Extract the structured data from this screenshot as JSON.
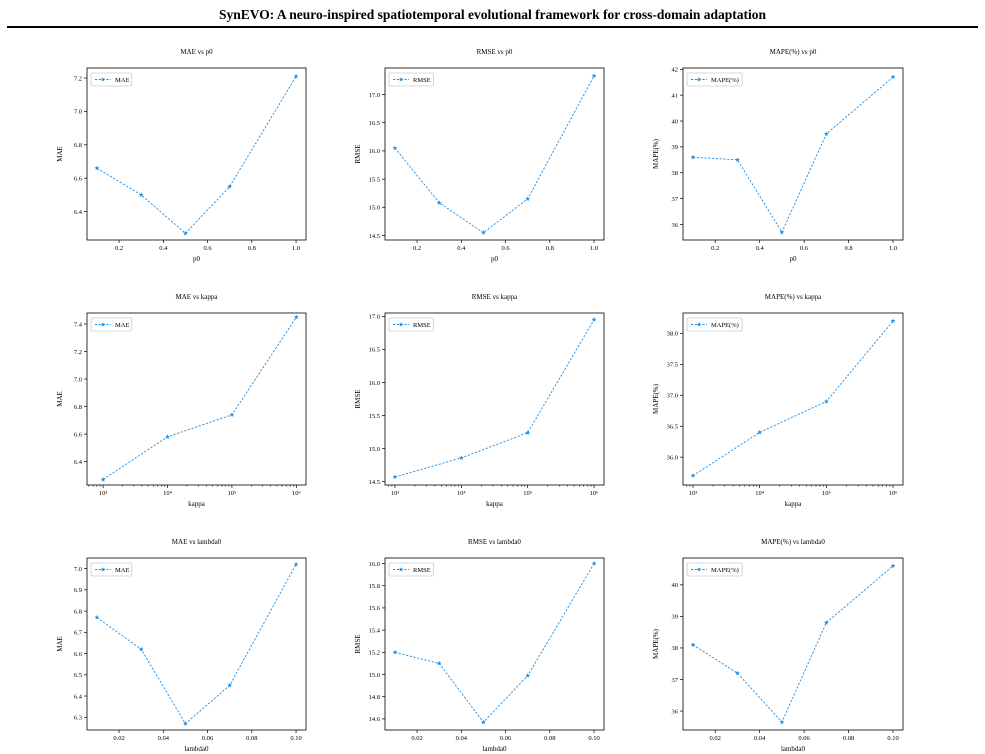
{
  "page": {
    "title": "SynEVO: A neuro-inspired spatiotemporal evolutional framework for cross-domain adaptation"
  },
  "chart_data": [
    {
      "type": "line",
      "title": "MAE vs p0",
      "xlabel": "p0",
      "ylabel": "MAE",
      "xscale": "linear",
      "xlim": [
        0.055,
        1.045
      ],
      "ylim": [
        6.23,
        7.26
      ],
      "xticks": [
        0.2,
        0.4,
        0.6,
        0.8,
        1.0
      ],
      "xtick_labels": [
        "0.2",
        "0.4",
        "0.6",
        "0.8",
        "1.0"
      ],
      "yticks": [
        6.4,
        6.6,
        6.8,
        7.0,
        7.2
      ],
      "ytick_labels": [
        "6.4",
        "6.6",
        "6.8",
        "7.0",
        "7.2"
      ],
      "legend_position": "top-left",
      "grid": false,
      "series": [
        {
          "name": "MAE",
          "color": "#1f8fe5",
          "x": [
            0.1,
            0.3,
            0.5,
            0.7,
            1.0
          ],
          "y": [
            6.66,
            6.5,
            6.27,
            6.55,
            7.21
          ]
        }
      ]
    },
    {
      "type": "line",
      "title": "RMSE vs p0",
      "xlabel": "p0",
      "ylabel": "RMSE",
      "xscale": "linear",
      "xlim": [
        0.055,
        1.045
      ],
      "ylim": [
        14.42,
        17.47
      ],
      "xticks": [
        0.2,
        0.4,
        0.6,
        0.8,
        1.0
      ],
      "xtick_labels": [
        "0.2",
        "0.4",
        "0.6",
        "0.8",
        "1.0"
      ],
      "yticks": [
        14.5,
        15.0,
        15.5,
        16.0,
        16.5,
        17.0
      ],
      "ytick_labels": [
        "14.5",
        "15.0",
        "15.5",
        "16.0",
        "16.5",
        "17.0"
      ],
      "legend_position": "top-left",
      "grid": false,
      "series": [
        {
          "name": "RMSE",
          "color": "#1f8fe5",
          "x": [
            0.1,
            0.3,
            0.5,
            0.7,
            1.0
          ],
          "y": [
            16.05,
            15.08,
            14.55,
            15.15,
            17.33
          ]
        }
      ]
    },
    {
      "type": "line",
      "title": "MAPE(%) vs p0",
      "xlabel": "p0",
      "ylabel": "MAPE(%)",
      "xscale": "linear",
      "xlim": [
        0.055,
        1.045
      ],
      "ylim": [
        35.4,
        42.05
      ],
      "xticks": [
        0.2,
        0.4,
        0.6,
        0.8,
        1.0
      ],
      "xtick_labels": [
        "0.2",
        "0.4",
        "0.6",
        "0.8",
        "1.0"
      ],
      "yticks": [
        36,
        37,
        38,
        39,
        40,
        41,
        42
      ],
      "ytick_labels": [
        "36",
        "37",
        "38",
        "39",
        "40",
        "41",
        "42"
      ],
      "legend_position": "top-left",
      "grid": false,
      "series": [
        {
          "name": "MAPE(%)",
          "color": "#1f8fe5",
          "x": [
            0.1,
            0.3,
            0.5,
            0.7,
            1.0
          ],
          "y": [
            38.6,
            38.5,
            35.7,
            39.5,
            41.7
          ]
        }
      ]
    },
    {
      "type": "line",
      "title": "MAE vs kappa",
      "xlabel": "kappa",
      "ylabel": "MAE",
      "xscale": "log",
      "xlim": [
        2.75,
        6.15
      ],
      "ylim": [
        6.23,
        7.48
      ],
      "xticks": [
        3,
        4,
        5,
        6
      ],
      "xtick_labels": [
        "10³",
        "10⁴",
        "10⁵",
        "10⁶"
      ],
      "yticks": [
        6.4,
        6.6,
        6.8,
        7.0,
        7.2,
        7.4
      ],
      "ytick_labels": [
        "6.4",
        "6.6",
        "6.8",
        "7.0",
        "7.2",
        "7.4"
      ],
      "legend_position": "top-left",
      "grid": false,
      "series": [
        {
          "name": "MAE",
          "color": "#1f8fe5",
          "x": [
            1000,
            10000,
            100000,
            1000000
          ],
          "y": [
            6.27,
            6.58,
            6.74,
            7.45
          ]
        }
      ]
    },
    {
      "type": "line",
      "title": "RMSE vs kappa",
      "xlabel": "kappa",
      "ylabel": "RMSE",
      "xscale": "log",
      "xlim": [
        2.85,
        6.15
      ],
      "ylim": [
        14.45,
        17.05
      ],
      "xticks": [
        3,
        4,
        5,
        6
      ],
      "xtick_labels": [
        "10³",
        "10⁴",
        "10⁵",
        "10⁶"
      ],
      "yticks": [
        14.5,
        15.0,
        15.5,
        16.0,
        16.5,
        17.0
      ],
      "ytick_labels": [
        "14.5",
        "15.0",
        "15.5",
        "16.0",
        "16.5",
        "17.0"
      ],
      "legend_position": "top-left",
      "grid": false,
      "series": [
        {
          "name": "RMSE",
          "color": "#1f8fe5",
          "x": [
            1000,
            10000,
            100000,
            1000000
          ],
          "y": [
            14.57,
            14.86,
            15.24,
            16.95
          ]
        }
      ]
    },
    {
      "type": "line",
      "title": "MAPE(%) vs kappa",
      "xlabel": "kappa",
      "ylabel": "MAPE(%)",
      "xscale": "log",
      "xlim": [
        2.85,
        6.15
      ],
      "ylim": [
        35.55,
        38.33
      ],
      "xticks": [
        3,
        4,
        5,
        6
      ],
      "xtick_labels": [
        "10³",
        "10⁴",
        "10⁵",
        "10⁶"
      ],
      "yticks": [
        36.0,
        36.5,
        37.0,
        37.5,
        38.0
      ],
      "ytick_labels": [
        "36.0",
        "36.5",
        "37.0",
        "37.5",
        "38.0"
      ],
      "legend_position": "top-left",
      "grid": false,
      "series": [
        {
          "name": "MAPE(%)",
          "color": "#1f8fe5",
          "x": [
            1000,
            10000,
            100000,
            1000000
          ],
          "y": [
            35.7,
            36.4,
            36.9,
            38.2
          ]
        }
      ]
    },
    {
      "type": "line",
      "title": "MAE vs lambda0",
      "xlabel": "lambda0",
      "ylabel": "MAE",
      "xscale": "linear",
      "xlim": [
        0.0055,
        0.1045
      ],
      "ylim": [
        6.24,
        7.05
      ],
      "xticks": [
        0.02,
        0.04,
        0.06,
        0.08,
        0.1
      ],
      "xtick_labels": [
        "0.02",
        "0.04",
        "0.06",
        "0.08",
        "0.10"
      ],
      "yticks": [
        6.3,
        6.4,
        6.5,
        6.6,
        6.7,
        6.8,
        6.9,
        7.0
      ],
      "ytick_labels": [
        "6.3",
        "6.4",
        "6.5",
        "6.6",
        "6.7",
        "6.8",
        "6.9",
        "7.0"
      ],
      "legend_position": "top-left",
      "grid": false,
      "series": [
        {
          "name": "MAE",
          "color": "#1f8fe5",
          "x": [
            0.01,
            0.03,
            0.05,
            0.07,
            0.1
          ],
          "y": [
            6.77,
            6.62,
            6.27,
            6.45,
            7.02
          ]
        }
      ]
    },
    {
      "type": "line",
      "title": "RMSE vs lambda0",
      "xlabel": "lambda0",
      "ylabel": "RMSE",
      "xscale": "linear",
      "xlim": [
        0.0055,
        0.1045
      ],
      "ylim": [
        14.5,
        16.05
      ],
      "xticks": [
        0.02,
        0.04,
        0.06,
        0.08,
        0.1
      ],
      "xtick_labels": [
        "0.02",
        "0.04",
        "0.06",
        "0.08",
        "0.10"
      ],
      "yticks": [
        14.6,
        14.8,
        15.0,
        15.2,
        15.4,
        15.6,
        15.8,
        16.0
      ],
      "ytick_labels": [
        "14.6",
        "14.8",
        "15.0",
        "15.2",
        "15.4",
        "15.6",
        "15.8",
        "16.0"
      ],
      "legend_position": "top-left",
      "grid": false,
      "series": [
        {
          "name": "RMSE",
          "color": "#1f8fe5",
          "x": [
            0.01,
            0.03,
            0.05,
            0.07,
            0.1
          ],
          "y": [
            15.2,
            15.1,
            14.57,
            14.99,
            16.0
          ]
        }
      ]
    },
    {
      "type": "line",
      "title": "MAPE(%) vs lambda0",
      "xlabel": "lambda0",
      "ylabel": "MAPE(%)",
      "xscale": "linear",
      "xlim": [
        0.0055,
        0.1045
      ],
      "ylim": [
        35.4,
        40.85
      ],
      "xticks": [
        0.02,
        0.04,
        0.06,
        0.08,
        0.1
      ],
      "xtick_labels": [
        "0.02",
        "0.04",
        "0.06",
        "0.08",
        "0.10"
      ],
      "yticks": [
        36,
        37,
        38,
        39,
        40
      ],
      "ytick_labels": [
        "36",
        "37",
        "38",
        "39",
        "40"
      ],
      "legend_position": "top-left",
      "grid": false,
      "series": [
        {
          "name": "MAPE(%)",
          "color": "#1f8fe5",
          "x": [
            0.01,
            0.03,
            0.05,
            0.07,
            0.1
          ],
          "y": [
            38.1,
            37.2,
            35.65,
            38.8,
            40.6
          ]
        }
      ]
    }
  ]
}
